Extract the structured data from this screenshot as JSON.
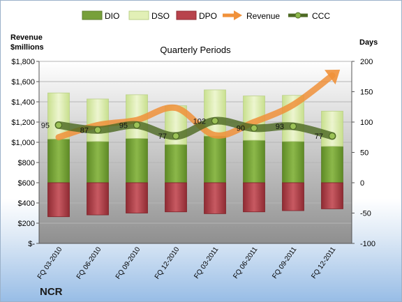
{
  "chart_data": {
    "type": "bar",
    "title": "Quarterly Periods",
    "left_axis_label": [
      "Revenue",
      "$millions"
    ],
    "right_axis_label": "Days",
    "company": "NCR",
    "categories": [
      "FQ 03-2010",
      "FQ 06-2010",
      "FQ 09-2010",
      "FQ 12-2010",
      "FQ 03-2011",
      "FQ 06-2011",
      "FQ 09-2011",
      "FQ 12-2011"
    ],
    "left_axis": {
      "min": 0,
      "max": 1800,
      "ticks": [
        "$-",
        "$200",
        "$400",
        "$600",
        "$800",
        "$1,000",
        "$1,200",
        "$1,400",
        "$1,600",
        "$1,800"
      ]
    },
    "right_axis": {
      "min": -100,
      "max": 200,
      "ticks": [
        "-100",
        "-50",
        "0",
        "50",
        "100",
        "150",
        "200"
      ]
    },
    "legend": {
      "position": "top",
      "items": [
        "DIO",
        "DSO",
        "DPO",
        "Revenue",
        "CCC"
      ]
    },
    "series": [
      {
        "name": "DIO",
        "axis": "right",
        "values": [
          72,
          68,
          73,
          63,
          77,
          70,
          68,
          60
        ]
      },
      {
        "name": "DSO",
        "axis": "right",
        "values": [
          76,
          70,
          72,
          64,
          76,
          73,
          76,
          58
        ]
      },
      {
        "name": "DPO",
        "axis": "right",
        "values": [
          -56,
          -53,
          -50,
          -48,
          -51,
          -48,
          -46,
          -43
        ]
      },
      {
        "name": "Revenue",
        "axis": "left",
        "values": [
          1050,
          1170,
          1220,
          1340,
          1070,
          1200,
          1370,
          1660
        ]
      },
      {
        "name": "CCC",
        "axis": "right",
        "values": [
          95,
          87,
          95,
          77,
          102,
          90,
          93,
          77
        ]
      }
    ],
    "ccc_labels": [
      "95",
      "87",
      "95",
      "77",
      "102",
      "90",
      "93",
      "77"
    ],
    "colors": {
      "dio": "#77a03a",
      "dso": "#d8eaa8",
      "dpo": "#b8434c",
      "revenue": "#f0913a",
      "ccc": "#4e6a24"
    },
    "grid": true
  }
}
